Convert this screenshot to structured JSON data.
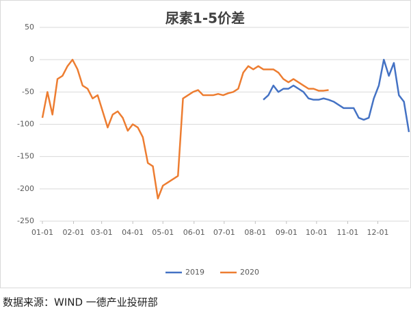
{
  "chart_data": {
    "type": "line",
    "title": "尿素1-5价差",
    "x": [
      1,
      6,
      11,
      16,
      21,
      26,
      31,
      36,
      41,
      46,
      51,
      56,
      61,
      66,
      71,
      76,
      81,
      86,
      91,
      96,
      101,
      106,
      111,
      116,
      121,
      126,
      131,
      136,
      141,
      146,
      151,
      156,
      161,
      166,
      171,
      176,
      181,
      186,
      191,
      196,
      201,
      206,
      211,
      216,
      221,
      226,
      231,
      236,
      241,
      246,
      251,
      256,
      261,
      266,
      271,
      276,
      281,
      286,
      291,
      296,
      301,
      306,
      311,
      316,
      321,
      326,
      331,
      336,
      341,
      346,
      351,
      356,
      361,
      366
    ],
    "series": [
      {
        "name": "2019",
        "color": "#4472c4",
        "values": [
          null,
          null,
          null,
          null,
          null,
          null,
          null,
          null,
          null,
          null,
          null,
          null,
          null,
          null,
          null,
          null,
          null,
          null,
          null,
          null,
          null,
          null,
          null,
          null,
          null,
          null,
          null,
          null,
          null,
          null,
          null,
          null,
          null,
          null,
          null,
          null,
          null,
          null,
          null,
          null,
          null,
          null,
          null,
          null,
          -62,
          -55,
          -40,
          -50,
          -45,
          -45,
          -40,
          -45,
          -50,
          -60,
          -62,
          -62,
          -60,
          -62,
          -65,
          -70,
          -75,
          -75,
          -75,
          -90,
          -93,
          -90,
          -60,
          -40,
          0,
          -25,
          -5,
          -55,
          -65,
          -112
        ]
      },
      {
        "name": "2020",
        "color": "#ed7d31",
        "values": [
          -90,
          -50,
          -85,
          -30,
          -25,
          -10,
          0,
          -15,
          -40,
          -45,
          -60,
          -55,
          -80,
          -105,
          -85,
          -80,
          -90,
          -110,
          -100,
          -105,
          -120,
          -160,
          -165,
          -215,
          -195,
          -190,
          -185,
          -180,
          -60,
          -55,
          -50,
          -47,
          -55,
          -55,
          -55,
          -53,
          -55,
          -52,
          -50,
          -45,
          -20,
          -10,
          -15,
          -10,
          -15,
          -15,
          -15,
          -20,
          -30,
          -35,
          -30,
          -35,
          -40,
          -45,
          -45,
          -48,
          -48,
          -47,
          null,
          null,
          null,
          null,
          null,
          null,
          null,
          null,
          null,
          null,
          null,
          null,
          null,
          null,
          null,
          null
        ]
      }
    ],
    "xlim": [
      1,
      366
    ],
    "xticks": [
      {
        "value": 1,
        "label": "01-01"
      },
      {
        "value": 32,
        "label": "02-01"
      },
      {
        "value": 60,
        "label": "03-01"
      },
      {
        "value": 91,
        "label": "04-01"
      },
      {
        "value": 121,
        "label": "05-01"
      },
      {
        "value": 152,
        "label": "06-01"
      },
      {
        "value": 182,
        "label": "07-01"
      },
      {
        "value": 213,
        "label": "08-01"
      },
      {
        "value": 244,
        "label": "09-01"
      },
      {
        "value": 274,
        "label": "10-01"
      },
      {
        "value": 305,
        "label": "11-01"
      },
      {
        "value": 335,
        "label": "12-01"
      }
    ],
    "ylim": [
      -250,
      50
    ],
    "yticks": [
      50,
      0,
      -50,
      -100,
      -150,
      -200,
      -250
    ],
    "grid": true,
    "legend": "bottom"
  },
  "footer": {
    "text": "数据来源：WIND  一德产业投研部"
  }
}
